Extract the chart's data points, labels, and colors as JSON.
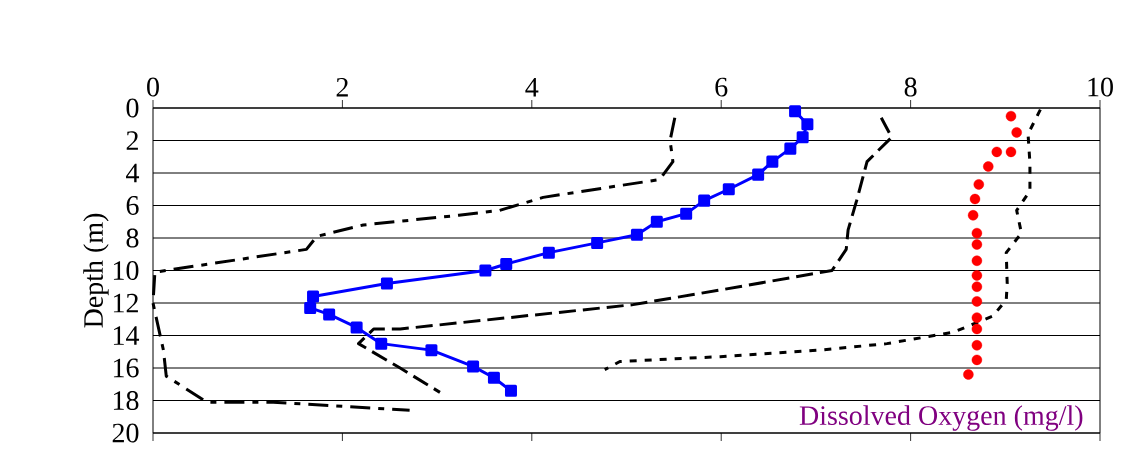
{
  "chart_data": {
    "type": "line",
    "ylabel": "Depth (m)",
    "annotations": [
      "Dissolved Oxygen (mg/l)"
    ],
    "xlim": [
      0,
      10
    ],
    "xticks": [
      0,
      2,
      4,
      6,
      8,
      10
    ],
    "ylim": [
      20,
      0
    ],
    "yticks": [
      0,
      2,
      4,
      6,
      8,
      10,
      12,
      14,
      16,
      18,
      20
    ],
    "grid": "y",
    "legend": false,
    "series": [
      {
        "type": "line",
        "color": "#0000ff",
        "marker": "square",
        "line_style": "solid",
        "x": [
          6.78,
          6.91,
          6.86,
          6.73,
          6.54,
          6.39,
          6.08,
          5.82,
          5.63,
          5.32,
          5.11,
          4.69,
          4.18,
          3.73,
          3.51,
          2.47,
          1.69,
          1.66,
          1.86,
          2.15,
          2.41,
          2.94,
          3.38,
          3.6,
          3.78
        ],
        "values": [
          0.2,
          1.0,
          1.8,
          2.5,
          3.3,
          4.1,
          5.0,
          5.7,
          6.5,
          7.0,
          7.8,
          8.3,
          8.9,
          9.6,
          10.0,
          10.8,
          11.6,
          12.3,
          12.7,
          13.5,
          14.5,
          14.9,
          15.9,
          16.6,
          17.4
        ]
      },
      {
        "type": "scatter",
        "color": "#ff0000",
        "marker": "circle",
        "x": [
          9.06,
          9.12,
          8.91,
          9.06,
          8.82,
          8.72,
          8.68,
          8.66,
          8.7,
          8.7,
          8.7,
          8.7,
          8.7,
          8.7,
          8.7,
          8.7,
          8.7,
          8.7,
          8.61
        ],
        "values": [
          0.5,
          1.5,
          2.7,
          2.7,
          3.6,
          4.7,
          5.6,
          6.6,
          7.7,
          8.4,
          9.4,
          10.3,
          11.0,
          11.9,
          12.9,
          13.6,
          14.6,
          15.5,
          16.4
        ]
      },
      {
        "type": "line",
        "color": "#000000",
        "marker": "none",
        "line_style": "dashdot",
        "x": [
          5.51,
          5.46,
          5.49,
          5.35,
          4.12,
          3.66,
          3.23,
          2.22,
          1.73,
          1.62,
          0.02,
          0.0,
          0.11,
          0.14,
          0.57,
          1.27,
          2.71
        ],
        "values": [
          0.6,
          2.0,
          3.3,
          4.4,
          5.5,
          6.3,
          6.6,
          7.2,
          7.9,
          8.7,
          10.1,
          12.0,
          14.9,
          16.5,
          18.1,
          18.1,
          18.6
        ]
      },
      {
        "type": "line",
        "color": "#000000",
        "marker": "none",
        "line_style": "dashed",
        "x": [
          7.69,
          7.8,
          7.54,
          7.43,
          7.34,
          7.32,
          7.17,
          5.99,
          5.07,
          2.61,
          2.33,
          2.17,
          2.61,
          3.03
        ],
        "values": [
          0.6,
          1.8,
          3.3,
          5.7,
          7.5,
          8.7,
          10.0,
          11.2,
          12.1,
          13.6,
          13.6,
          14.5,
          16.0,
          17.5
        ]
      },
      {
        "type": "line",
        "color": "#000000",
        "marker": "none",
        "line_style": "dotted",
        "x": [
          9.37,
          9.24,
          9.26,
          9.26,
          9.12,
          9.17,
          9.01,
          9.02,
          9.01,
          8.87,
          8.45,
          7.75,
          7.04,
          5.99,
          4.93,
          4.77
        ],
        "values": [
          0.1,
          1.6,
          3.4,
          5.1,
          6.3,
          7.7,
          8.9,
          10.8,
          11.8,
          12.8,
          13.8,
          14.5,
          14.9,
          15.3,
          15.6,
          16.1
        ]
      }
    ]
  }
}
